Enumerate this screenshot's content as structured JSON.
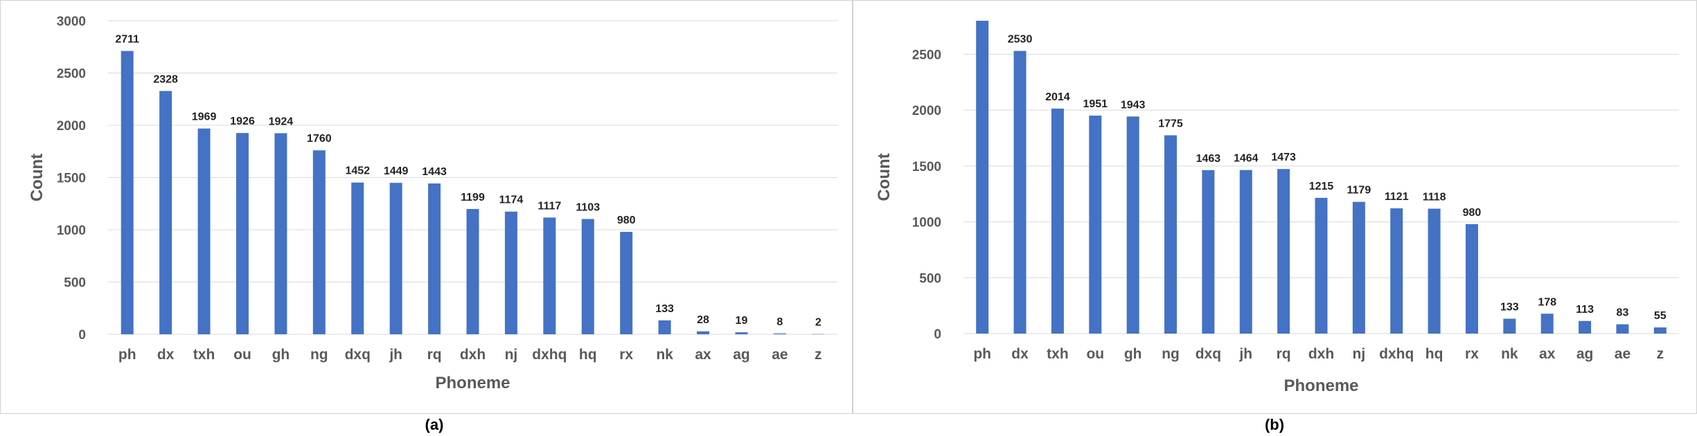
{
  "colors": {
    "bar": "#4472C4",
    "grid": "#d9d9d9",
    "axis_text": "#595959"
  },
  "chart_data": [
    {
      "type": "bar",
      "caption": "(a)",
      "xlabel": "Phoneme",
      "ylabel": "Count",
      "ylim": [
        0,
        3000
      ],
      "yticks": [
        0,
        500,
        1000,
        1500,
        2000,
        2500,
        3000
      ],
      "grid": true,
      "categories": [
        "ph",
        "dx",
        "txh",
        "ou",
        "gh",
        "ng",
        "dxq",
        "jh",
        "rq",
        "dxh",
        "nj",
        "dxhq",
        "hq",
        "rx",
        "nk",
        "ax",
        "ag",
        "ae",
        "z"
      ],
      "values": [
        2711,
        2328,
        1969,
        1926,
        1924,
        1760,
        1452,
        1449,
        1443,
        1199,
        1174,
        1117,
        1103,
        980,
        133,
        28,
        19,
        8,
        2
      ],
      "data_labels": [
        "2711",
        "2328",
        "1969",
        "1926",
        "1924",
        "1760",
        "1452",
        "1449",
        "1443",
        "1199",
        "1174",
        "1117",
        "1103",
        "980",
        "133",
        "28",
        "19",
        "8",
        "2"
      ]
    },
    {
      "type": "bar",
      "caption": "(b)",
      "xlabel": "Phoneme",
      "ylabel": "Count",
      "ylim": [
        0,
        2800
      ],
      "yticks": [
        0,
        500,
        1000,
        1500,
        2000,
        2500
      ],
      "grid": true,
      "categories": [
        "ph",
        "dx",
        "txh",
        "ou",
        "gh",
        "ng",
        "dxq",
        "jh",
        "rq",
        "dxh",
        "nj",
        "dxhq",
        "hq",
        "rx",
        "nk",
        "ax",
        "ag",
        "ae",
        "z"
      ],
      "values": [
        2800,
        2530,
        2014,
        1951,
        1943,
        1775,
        1463,
        1464,
        1473,
        1215,
        1179,
        1121,
        1118,
        980,
        133,
        178,
        113,
        83,
        55
      ],
      "data_labels": [
        "",
        "2530",
        "2014",
        "1951",
        "1943",
        "1775",
        "1463",
        "1464",
        "1473",
        "1215",
        "1179",
        "1121",
        "1118",
        "980",
        "133",
        "178",
        "113",
        "83",
        "55"
      ]
    }
  ]
}
